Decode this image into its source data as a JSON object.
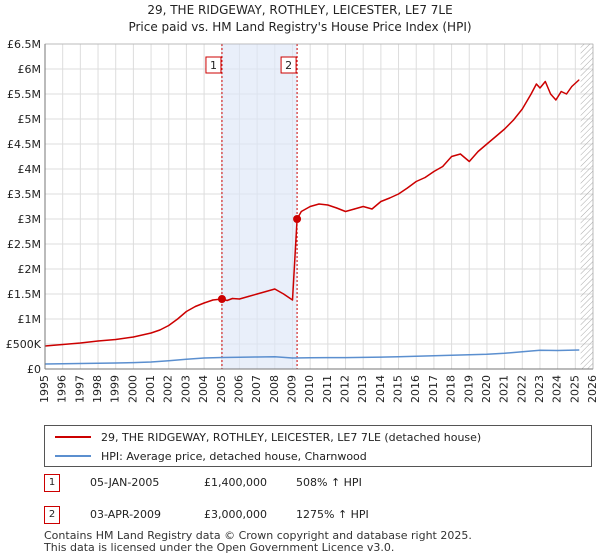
{
  "chart_data": {
    "type": "line",
    "title": "29, THE RIDGEWAY, ROTHLEY, LEICESTER, LE7 7LE",
    "subtitle": "Price paid vs. HM Land Registry's House Price Index (HPI)",
    "xlim": [
      1995,
      2026
    ],
    "ylim": [
      0,
      6500000
    ],
    "x_ticks": [
      1995,
      1996,
      1997,
      1998,
      1999,
      2000,
      2001,
      2002,
      2003,
      2004,
      2005,
      2006,
      2007,
      2008,
      2009,
      2010,
      2011,
      2012,
      2013,
      2014,
      2015,
      2016,
      2017,
      2018,
      2019,
      2020,
      2021,
      2022,
      2023,
      2024,
      2025,
      2026
    ],
    "y_ticks": [
      0,
      500000,
      1000000,
      1500000,
      2000000,
      2500000,
      3000000,
      3500000,
      4000000,
      4500000,
      5000000,
      5500000,
      6000000,
      6500000
    ],
    "y_tick_labels": [
      "£0",
      "£500K",
      "£1M",
      "£1.5M",
      "£2M",
      "£2.5M",
      "£3M",
      "£3.5M",
      "£4M",
      "£4.5M",
      "£5M",
      "£5.5M",
      "£6M",
      "£6.5M"
    ],
    "grid": true,
    "series": [
      {
        "name": "29, THE RIDGEWAY, ROTHLEY, LEICESTER, LE7 7LE (detached house)",
        "color": "#cc0000",
        "x": [
          1995.0,
          1996.0,
          1997.0,
          1998.0,
          1999.0,
          2000.0,
          2001.0,
          2001.5,
          2002.0,
          2002.5,
          2003.0,
          2003.5,
          2004.0,
          2004.5,
          2005.0,
          2005.3,
          2005.6,
          2006.0,
          2006.5,
          2007.0,
          2007.5,
          2008.0,
          2008.5,
          2009.0,
          2009.26,
          2009.5,
          2010.0,
          2010.5,
          2011.0,
          2011.5,
          2012.0,
          2012.5,
          2013.0,
          2013.5,
          2014.0,
          2014.5,
          2015.0,
          2015.5,
          2016.0,
          2016.5,
          2017.0,
          2017.5,
          2018.0,
          2018.5,
          2019.0,
          2019.5,
          2020.0,
          2020.5,
          2021.0,
          2021.5,
          2022.0,
          2022.5,
          2022.8,
          2023.0,
          2023.3,
          2023.6,
          2023.9,
          2024.2,
          2024.5,
          2024.8,
          2025.2
        ],
        "values": [
          460000,
          490000,
          520000,
          560000,
          590000,
          640000,
          720000,
          780000,
          870000,
          1000000,
          1150000,
          1250000,
          1320000,
          1380000,
          1400000,
          1370000,
          1410000,
          1400000,
          1450000,
          1500000,
          1550000,
          1600000,
          1500000,
          1380000,
          3000000,
          3150000,
          3250000,
          3300000,
          3280000,
          3220000,
          3150000,
          3200000,
          3250000,
          3200000,
          3350000,
          3420000,
          3500000,
          3620000,
          3750000,
          3830000,
          3950000,
          4050000,
          4250000,
          4300000,
          4150000,
          4350000,
          4500000,
          4650000,
          4800000,
          4980000,
          5200000,
          5500000,
          5700000,
          5620000,
          5750000,
          5500000,
          5380000,
          5550000,
          5500000,
          5650000,
          5780000
        ]
      },
      {
        "name": "HPI: Average price, detached house, Charnwood",
        "color": "#5b8fcf",
        "x": [
          1995.0,
          1996.0,
          1997.0,
          1998.0,
          1999.0,
          2000.0,
          2001.0,
          2002.0,
          2003.0,
          2004.0,
          2005.0,
          2006.0,
          2007.0,
          2008.0,
          2009.0,
          2010.0,
          2011.0,
          2012.0,
          2013.0,
          2014.0,
          2015.0,
          2016.0,
          2017.0,
          2018.0,
          2019.0,
          2020.0,
          2021.0,
          2022.0,
          2023.0,
          2024.0,
          2025.2
        ],
        "values": [
          100000,
          105000,
          110000,
          115000,
          120000,
          128000,
          140000,
          165000,
          195000,
          220000,
          230000,
          235000,
          240000,
          245000,
          220000,
          225000,
          228000,
          228000,
          232000,
          238000,
          245000,
          255000,
          265000,
          275000,
          285000,
          295000,
          315000,
          345000,
          375000,
          370000,
          380000
        ]
      }
    ],
    "sales": [
      {
        "label": "1",
        "x": 2005.01,
        "value": 1400000
      },
      {
        "label": "2",
        "x": 2009.26,
        "value": 3000000
      }
    ],
    "shaded_x_range": [
      2005.01,
      2009.26
    ],
    "hatched_from_x": 2025.3
  },
  "legend": {
    "items": [
      {
        "label": "29, THE RIDGEWAY, ROTHLEY, LEICESTER, LE7 7LE (detached house)",
        "color": "#cc0000"
      },
      {
        "label": "HPI: Average price, detached house, Charnwood",
        "color": "#5b8fcf"
      }
    ]
  },
  "sales_table": [
    {
      "num": "1",
      "date": "05-JAN-2005",
      "price": "£1,400,000",
      "hpi": "508% ↑ HPI"
    },
    {
      "num": "2",
      "date": "03-APR-2009",
      "price": "£3,000,000",
      "hpi": "1275% ↑ HPI"
    }
  ],
  "footer": {
    "line1": "Contains HM Land Registry data © Crown copyright and database right 2025.",
    "line2": "This data is licensed under the Open Government Licence v3.0."
  }
}
